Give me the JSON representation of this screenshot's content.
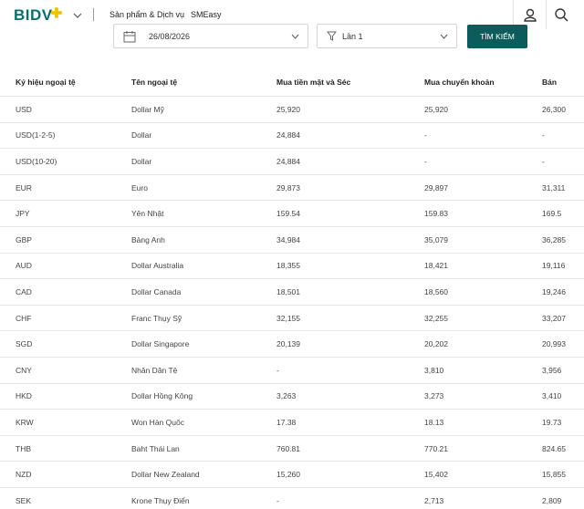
{
  "header": {
    "logo": "BIDV",
    "nav": [
      "Sản phẩm & Dịch vụ",
      "SMEasy"
    ]
  },
  "filters": {
    "date": "26/08/2026",
    "session": "Lần 1",
    "button": "TÌM KIẾM"
  },
  "table": {
    "columns": [
      "Ký hiệu ngoại tệ",
      "Tên ngoại tệ",
      "Mua tiền mặt và Séc",
      "Mua chuyển khoản",
      "Bán"
    ],
    "rows": [
      [
        "USD",
        "Dollar Mỹ",
        "25,920",
        "25,920",
        "26,300"
      ],
      [
        "USD(1-2-5)",
        "Dollar",
        "24,884",
        "-",
        "-"
      ],
      [
        "USD(10-20)",
        "Dollar",
        "24,884",
        "-",
        "-"
      ],
      [
        "EUR",
        "Euro",
        "29,873",
        "29,897",
        "31,311"
      ],
      [
        "JPY",
        "Yên Nhật",
        "159.54",
        "159.83",
        "169.5"
      ],
      [
        "GBP",
        "Bảng Anh",
        "34,984",
        "35,079",
        "36,285"
      ],
      [
        "AUD",
        "Dollar Australia",
        "18,355",
        "18,421",
        "19,116"
      ],
      [
        "CAD",
        "Dollar Canada",
        "18,501",
        "18,560",
        "19,246"
      ],
      [
        "CHF",
        "Franc Thụy Sỹ",
        "32,155",
        "32,255",
        "33,207"
      ],
      [
        "SGD",
        "Dollar Singapore",
        "20,139",
        "20,202",
        "20,993"
      ],
      [
        "CNY",
        "Nhân Dân Tệ",
        "-",
        "3,810",
        "3,956"
      ],
      [
        "HKD",
        "Dollar Hồng Kông",
        "3,263",
        "3,273",
        "3,410"
      ],
      [
        "KRW",
        "Won Hàn Quốc",
        "17.38",
        "18.13",
        "19.73"
      ],
      [
        "THB",
        "Baht Thái Lan",
        "760.81",
        "770.21",
        "824.65"
      ],
      [
        "NZD",
        "Dollar New Zealand",
        "15,260",
        "15,402",
        "15,855"
      ],
      [
        "SEK",
        "Krone Thụy Điển",
        "-",
        "2,713",
        "2,809"
      ]
    ]
  }
}
